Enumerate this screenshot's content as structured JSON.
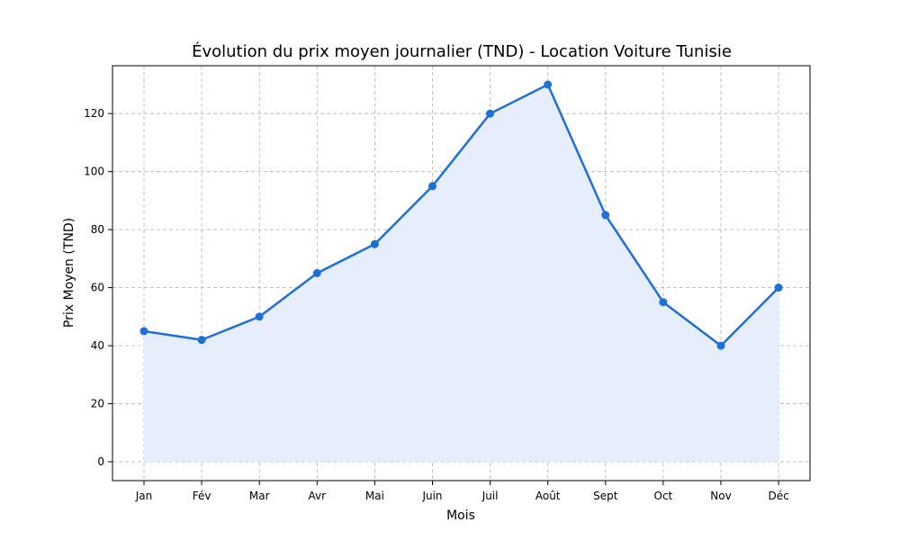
{
  "chart_data": {
    "type": "line",
    "title": "Évolution du prix moyen journalier (TND) - Location Voiture Tunisie",
    "xlabel": "Mois",
    "ylabel": "Prix Moyen (TND)",
    "categories": [
      "Jan",
      "Fév",
      "Mar",
      "Avr",
      "Mai",
      "Juin",
      "Juil",
      "Août",
      "Sept",
      "Oct",
      "Nov",
      "Déc"
    ],
    "series": [
      {
        "values": [
          45,
          42,
          50,
          65,
          75,
          95,
          120,
          130,
          85,
          55,
          40,
          60
        ],
        "color": "#1f6fd8",
        "fill_color": "#e6eefb",
        "marker": "circle"
      }
    ],
    "yticks": [
      0,
      20,
      40,
      60,
      80,
      100,
      120
    ],
    "ylim": [
      -6.5,
      136.5
    ],
    "grid": true,
    "area_fill": true
  }
}
